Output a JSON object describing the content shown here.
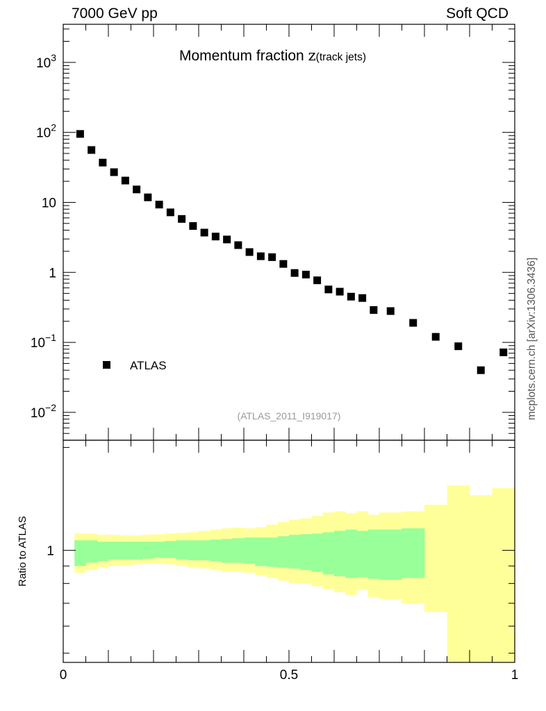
{
  "header": {
    "left": "7000 GeV pp",
    "right": "Soft QCD"
  },
  "side_label": "mcplots.cern.ch [arXiv:1306.3436]",
  "colors": {
    "data_marker": "#000000",
    "band_inner": "#99ff99",
    "band_outer": "#ffff99",
    "analysis_label": "#999999"
  },
  "chart_data": [
    {
      "type": "scatter",
      "title_main": "Momentum fraction ",
      "title_z": "z",
      "title_sub": "(track jets)",
      "analysis_label": "(ATLAS_2011_I919017)",
      "yscale": "log",
      "ylim": [
        0.004,
        3500
      ],
      "xlim": [
        0,
        1
      ],
      "y_ticks": [
        {
          "value": 1000,
          "base": "10",
          "exp": "3"
        },
        {
          "value": 100,
          "base": "10",
          "exp": "2"
        },
        {
          "value": 10,
          "base": "10",
          "exp": ""
        },
        {
          "value": 1,
          "base": "1",
          "exp": ""
        },
        {
          "value": 0.1,
          "base": "10",
          "exp": "−1"
        },
        {
          "value": 0.01,
          "base": "10",
          "exp": "−2"
        }
      ],
      "legend": {
        "entry": "ATLAS",
        "placement": "lower-left"
      },
      "series": [
        {
          "name": "ATLAS",
          "x": [
            0.0375,
            0.0625,
            0.0875,
            0.1125,
            0.1375,
            0.1625,
            0.1875,
            0.2125,
            0.2375,
            0.2625,
            0.2875,
            0.3125,
            0.3375,
            0.3625,
            0.3875,
            0.4125,
            0.4375,
            0.4625,
            0.4875,
            0.5125,
            0.5375,
            0.5625,
            0.5875,
            0.6125,
            0.6375,
            0.6625,
            0.6875,
            0.725,
            0.775,
            0.825,
            0.875,
            0.925,
            0.975
          ],
          "y": [
            95,
            56,
            37,
            27,
            20.5,
            15.3,
            11.8,
            9.3,
            7.2,
            5.8,
            4.6,
            3.7,
            3.25,
            2.95,
            2.45,
            1.95,
            1.7,
            1.65,
            1.32,
            0.98,
            0.93,
            0.77,
            0.57,
            0.53,
            0.45,
            0.43,
            0.29,
            0.28,
            0.19,
            0.12,
            0.088,
            0.04,
            0.072
          ]
        }
      ]
    },
    {
      "type": "area",
      "ylabel": "Ratio to ATLAS",
      "yscale": "log",
      "ylim": [
        0.47,
        2.1
      ],
      "xlim": [
        0,
        1
      ],
      "x_ticks": [
        {
          "value": 0,
          "label": "0"
        },
        {
          "value": 0.5,
          "label": "0.5"
        },
        {
          "value": 1,
          "label": "1"
        }
      ],
      "y_ticks": [
        {
          "value": 1,
          "label": "1"
        }
      ],
      "bin_edges": [
        0.025,
        0.05,
        0.075,
        0.1,
        0.125,
        0.15,
        0.175,
        0.2,
        0.225,
        0.25,
        0.275,
        0.3,
        0.325,
        0.35,
        0.375,
        0.4,
        0.425,
        0.45,
        0.475,
        0.5,
        0.525,
        0.55,
        0.575,
        0.6,
        0.625,
        0.65,
        0.675,
        0.7,
        0.75,
        0.8,
        0.85,
        0.9,
        0.95,
        1.0
      ],
      "band_inner": {
        "lo": [
          0.9,
          0.92,
          0.93,
          0.94,
          0.94,
          0.94,
          0.945,
          0.95,
          0.95,
          0.94,
          0.935,
          0.935,
          0.93,
          0.92,
          0.92,
          0.915,
          0.9,
          0.895,
          0.89,
          0.885,
          0.875,
          0.865,
          0.85,
          0.84,
          0.83,
          0.835,
          0.825,
          0.82,
          0.83,
          null,
          null,
          null,
          null
        ],
        "hi": [
          1.07,
          1.07,
          1.06,
          1.06,
          1.06,
          1.06,
          1.06,
          1.06,
          1.065,
          1.07,
          1.07,
          1.07,
          1.075,
          1.08,
          1.085,
          1.09,
          1.09,
          1.09,
          1.1,
          1.11,
          1.115,
          1.12,
          1.13,
          1.14,
          1.15,
          1.14,
          1.15,
          1.15,
          1.16,
          null,
          null,
          null,
          null
        ]
      },
      "band_outer": {
        "lo": [
          0.86,
          0.875,
          0.89,
          0.9,
          0.905,
          0.91,
          0.915,
          0.915,
          0.91,
          0.9,
          0.89,
          0.885,
          0.875,
          0.865,
          0.865,
          0.86,
          0.845,
          0.83,
          0.815,
          0.8,
          0.8,
          0.785,
          0.77,
          0.755,
          0.74,
          0.765,
          0.73,
          0.72,
          0.7,
          0.66,
          0.47,
          0.47,
          0.47
        ],
        "hi": [
          1.12,
          1.12,
          1.11,
          1.11,
          1.105,
          1.105,
          1.11,
          1.115,
          1.12,
          1.125,
          1.13,
          1.14,
          1.15,
          1.16,
          1.165,
          1.16,
          1.17,
          1.19,
          1.21,
          1.23,
          1.24,
          1.26,
          1.29,
          1.3,
          1.285,
          1.3,
          1.27,
          1.29,
          1.3,
          1.36,
          1.55,
          1.45,
          1.52
        ]
      }
    }
  ]
}
